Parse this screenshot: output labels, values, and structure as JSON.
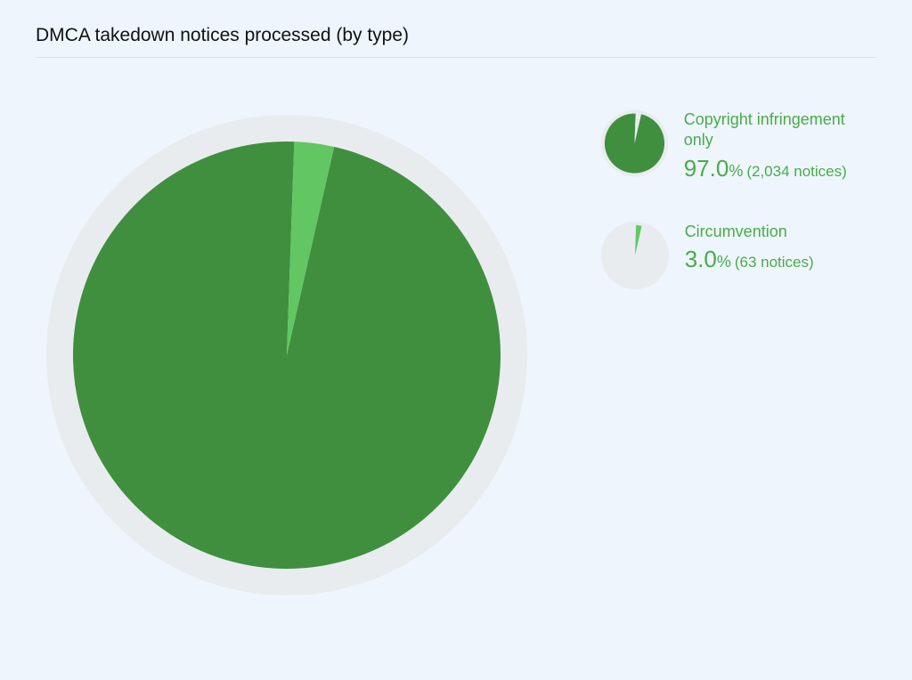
{
  "title": "DMCA takedown notices processed (by type)",
  "background_color": "#eef5fc",
  "title_color": "#101214",
  "title_fontsize": 21,
  "divider_color": "#d9dfe5",
  "accent_text_color": "#4aab4a",
  "legend_label_fontsize": 18,
  "legend_pct_fontsize": 26,
  "legend_suffix_fontsize": 18,
  "legend_count_fontsize": 17,
  "chart": {
    "type": "pie",
    "ring_color": "#e9ecef",
    "ring_outer_radius": 270,
    "pie_radius": 240,
    "slices": [
      {
        "label": "Copyright infringement only",
        "value": 97.0,
        "count": "2,034 notices",
        "color": "#3f8f3f"
      },
      {
        "label": "Circumvention",
        "value": 3.0,
        "count": "63 notices",
        "color": "#62c662"
      }
    ]
  },
  "legend_thumb": {
    "outer_radius": 38,
    "pie_radius": 34
  }
}
